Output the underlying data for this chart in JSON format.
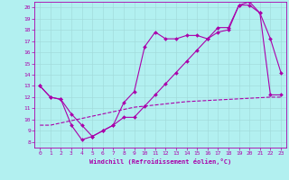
{
  "xlabel": "Windchill (Refroidissement éolien,°C)",
  "background_color": "#b2f0f0",
  "line_color": "#aa00aa",
  "xlim": [
    -0.5,
    23.5
  ],
  "ylim": [
    7.5,
    20.5
  ],
  "xticks": [
    0,
    1,
    2,
    3,
    4,
    5,
    6,
    7,
    8,
    9,
    10,
    11,
    12,
    13,
    14,
    15,
    16,
    17,
    18,
    19,
    20,
    21,
    22,
    23
  ],
  "yticks": [
    8,
    9,
    10,
    11,
    12,
    13,
    14,
    15,
    16,
    17,
    18,
    19,
    20
  ],
  "line1_x": [
    0,
    1,
    2,
    3,
    4,
    5,
    6,
    7,
    8,
    9,
    10,
    11,
    12,
    13,
    14,
    15,
    16,
    17,
    18,
    19,
    20,
    21,
    22,
    23
  ],
  "line1_y": [
    13,
    12,
    11.8,
    10.5,
    9.5,
    8.5,
    9.0,
    9.5,
    11.5,
    12.5,
    16.5,
    17.8,
    17.2,
    17.2,
    17.5,
    17.5,
    17.2,
    17.8,
    18.0,
    20.2,
    20.2,
    19.5,
    17.2,
    14.2
  ],
  "line2_x": [
    0,
    1,
    2,
    3,
    4,
    5,
    6,
    7,
    8,
    9,
    10,
    11,
    12,
    13,
    14,
    15,
    16,
    17,
    18,
    19,
    20,
    21,
    22,
    23
  ],
  "line2_y": [
    13,
    12,
    11.8,
    9.5,
    8.2,
    8.5,
    9.0,
    9.5,
    10.2,
    10.2,
    11.2,
    12.2,
    13.2,
    14.2,
    15.2,
    16.2,
    17.2,
    18.2,
    18.2,
    20.2,
    20.5,
    19.5,
    12.2,
    12.2
  ],
  "line3_x": [
    0,
    1,
    2,
    3,
    4,
    5,
    6,
    7,
    8,
    9,
    10,
    11,
    12,
    13,
    14,
    15,
    16,
    17,
    18,
    19,
    20,
    21,
    22,
    23
  ],
  "line3_y": [
    9.5,
    9.5,
    9.7,
    9.9,
    10.1,
    10.3,
    10.5,
    10.7,
    10.9,
    11.1,
    11.2,
    11.3,
    11.4,
    11.5,
    11.6,
    11.65,
    11.7,
    11.75,
    11.8,
    11.85,
    11.9,
    11.95,
    12.0,
    12.0
  ]
}
